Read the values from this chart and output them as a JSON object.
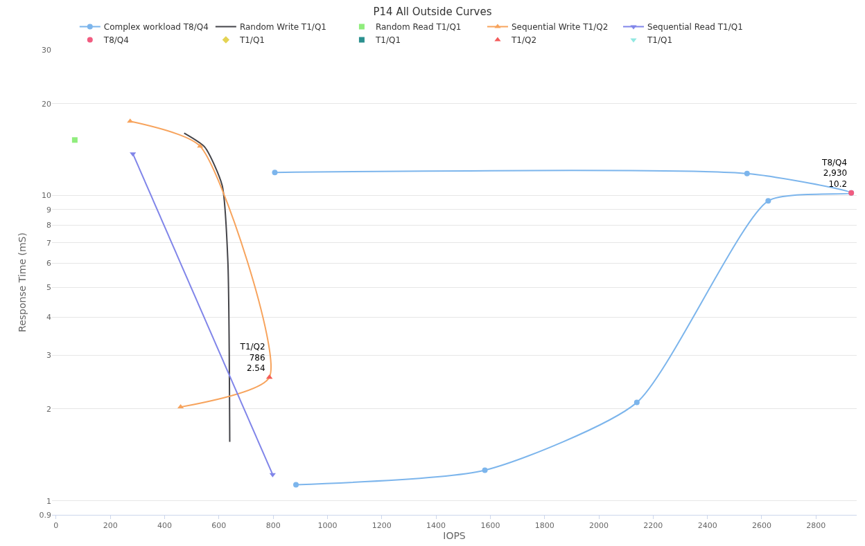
{
  "chart_data": {
    "type": "line",
    "title": "P14 All Outside Curves",
    "xlabel": "IOPS",
    "ylabel": "Response Time (mS)",
    "log": "y",
    "grid": "y",
    "legend": "top",
    "xlim": [
      -15,
      2950
    ],
    "xticks": [
      0,
      200,
      400,
      600,
      800,
      1000,
      1200,
      1400,
      1600,
      1800,
      2000,
      2200,
      2400,
      2600,
      2800
    ],
    "ylim": [
      0.9,
      30
    ],
    "yticks": [
      0.9,
      1,
      2,
      3,
      4,
      5,
      6,
      7,
      8,
      9,
      10,
      20,
      30
    ],
    "series": [
      {
        "name": "Complex workload T8/Q4",
        "color": "#7cb5ec",
        "marker": "circle",
        "x": [
          806,
          2546,
          2930,
          2624,
          2140,
          1580,
          884
        ],
        "values": [
          11.9,
          11.8,
          10.2,
          9.6,
          2.1,
          1.26,
          1.13
        ]
      },
      {
        "name": "Random Write T1/Q1",
        "color": "#434348",
        "marker": "none",
        "x": [
          472,
          548,
          612,
          633,
          640
        ],
        "values": [
          16.0,
          14.4,
          10.8,
          6.1,
          1.56
        ]
      },
      {
        "name": "Random Read T1/Q1",
        "color": "#90ed7d",
        "type": "scatter",
        "marker": "square",
        "x": [
          69
        ],
        "values": [
          15.2
        ]
      },
      {
        "name": "Sequential Write T1/Q2",
        "color": "#f7a35c",
        "marker": "triangle",
        "x": [
          273,
          531,
          786,
          459
        ],
        "values": [
          17.5,
          14.5,
          2.54,
          2.03
        ]
      },
      {
        "name": "Sequential Read T1/Q1",
        "color": "#8085e9",
        "marker": "triangle-down",
        "x": [
          283,
          798
        ],
        "values": [
          13.7,
          1.22
        ]
      },
      {
        "name": "T8/Q4",
        "color": "#f15c80",
        "type": "scatter",
        "marker": "circle",
        "x": [
          2930
        ],
        "values": [
          10.2
        ],
        "value_labels": [
          "T8/Q4\n2,930\n10.2"
        ]
      },
      {
        "name": "T1/Q1",
        "color": "#e4d354",
        "type": "scatter",
        "marker": "diamond"
      },
      {
        "name": "T1/Q1",
        "color": "#2b908f",
        "type": "scatter",
        "marker": "square"
      },
      {
        "name": "T1/Q2",
        "color": "#f45b5b",
        "type": "scatter",
        "marker": "triangle",
        "x": [
          786
        ],
        "values": [
          2.54
        ],
        "value_labels": [
          "T1/Q2\n786\n2.54"
        ]
      },
      {
        "name": "T1/Q1",
        "color": "#91e8e1",
        "type": "scatter",
        "marker": "triangle-down"
      }
    ]
  }
}
